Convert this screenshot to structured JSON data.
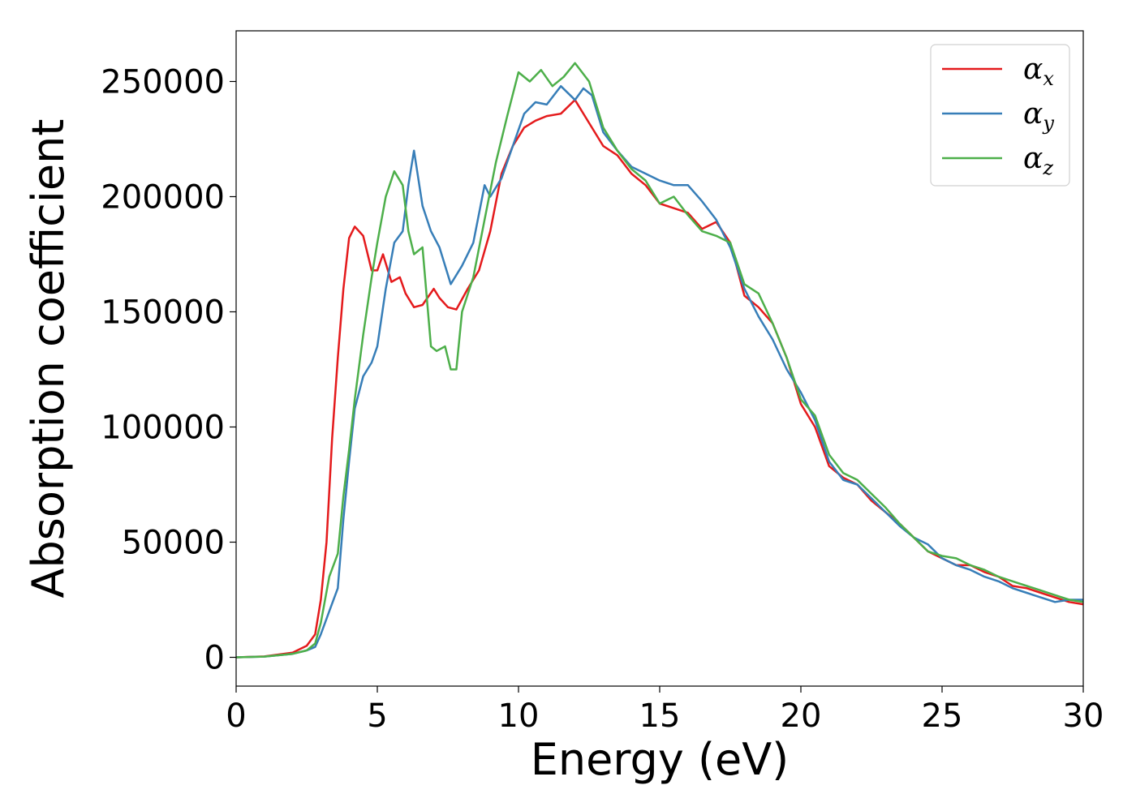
{
  "chart_data": {
    "type": "line",
    "title": "",
    "xlabel": "Energy (eV)",
    "ylabel": "Absorption coefficient",
    "xlim": [
      0,
      30
    ],
    "ylim": [
      -12500,
      272000
    ],
    "x_ticks": [
      0,
      5,
      10,
      15,
      20,
      25,
      30
    ],
    "x_tick_labels": [
      "0",
      "5",
      "10",
      "15",
      "20",
      "25",
      "30"
    ],
    "y_ticks": [
      0,
      50000,
      100000,
      150000,
      200000,
      250000
    ],
    "y_tick_labels": [
      "0",
      "50000",
      "100000",
      "150000",
      "200000",
      "250000"
    ],
    "grid": false,
    "legend_position": "top-right",
    "series": [
      {
        "name": "α",
        "name_subscript": "x",
        "color": "#e41a1c",
        "x": [
          0,
          1,
          2,
          2.5,
          2.8,
          3.0,
          3.2,
          3.4,
          3.6,
          3.8,
          4.0,
          4.2,
          4.5,
          4.8,
          5.0,
          5.2,
          5.5,
          5.8,
          6.0,
          6.3,
          6.6,
          7.0,
          7.2,
          7.5,
          7.8,
          8.2,
          8.6,
          9.0,
          9.4,
          9.8,
          10.2,
          10.6,
          11.0,
          11.5,
          12.0,
          12.5,
          13.0,
          13.5,
          14.0,
          14.5,
          15.0,
          15.5,
          16.0,
          16.5,
          17.0,
          17.5,
          18.0,
          18.5,
          19.0,
          19.5,
          20.0,
          20.5,
          21.0,
          21.5,
          22.0,
          22.5,
          23.0,
          23.5,
          24.0,
          24.5,
          25.0,
          25.5,
          26.0,
          26.5,
          27.0,
          27.5,
          28.0,
          28.5,
          29.0,
          29.5,
          30.0
        ],
        "y": [
          0,
          400,
          2000,
          5000,
          10000,
          25000,
          50000,
          95000,
          130000,
          160000,
          182000,
          187000,
          183000,
          168000,
          168000,
          175000,
          163000,
          165000,
          158000,
          152000,
          153000,
          160000,
          156000,
          152000,
          151000,
          160000,
          168000,
          185000,
          210000,
          222000,
          230000,
          233000,
          235000,
          236000,
          242000,
          232000,
          222000,
          218000,
          210000,
          205000,
          197000,
          195000,
          193000,
          186000,
          189000,
          180000,
          157000,
          152000,
          145000,
          130000,
          110000,
          100000,
          83000,
          78000,
          75000,
          68000,
          63000,
          58000,
          52000,
          46000,
          43000,
          40000,
          40000,
          37000,
          35000,
          31000,
          30000,
          28000,
          26000,
          24000,
          23000
        ]
      },
      {
        "name": "α",
        "name_subscript": "y",
        "color": "#377eb8",
        "x": [
          0,
          1,
          2,
          2.5,
          2.8,
          3.0,
          3.3,
          3.6,
          3.8,
          4.0,
          4.2,
          4.5,
          4.8,
          5.0,
          5.3,
          5.6,
          5.9,
          6.1,
          6.3,
          6.6,
          6.9,
          7.2,
          7.6,
          8.0,
          8.4,
          8.8,
          9.0,
          9.4,
          9.8,
          10.2,
          10.6,
          11.0,
          11.5,
          12.0,
          12.3,
          12.6,
          13.0,
          13.5,
          14.0,
          14.5,
          15.0,
          15.5,
          16.0,
          16.5,
          17.0,
          17.5,
          18.0,
          18.5,
          19.0,
          19.5,
          20.0,
          20.5,
          21.0,
          21.5,
          22.0,
          22.5,
          23.0,
          23.5,
          24.0,
          24.5,
          25.0,
          25.5,
          26.0,
          26.5,
          27.0,
          27.5,
          28.0,
          28.5,
          29.0,
          29.5,
          30.0
        ],
        "y": [
          0,
          300,
          1500,
          3000,
          4500,
          10000,
          20000,
          30000,
          60000,
          85000,
          108000,
          122000,
          128000,
          135000,
          160000,
          180000,
          185000,
          205000,
          220000,
          196000,
          185000,
          178000,
          162000,
          170000,
          180000,
          205000,
          200000,
          208000,
          222000,
          236000,
          241000,
          240000,
          248000,
          242000,
          247000,
          244000,
          228000,
          220000,
          213000,
          210000,
          207000,
          205000,
          205000,
          198000,
          190000,
          178000,
          160000,
          148000,
          138000,
          125000,
          115000,
          103000,
          85000,
          77000,
          75000,
          69000,
          63000,
          57000,
          52000,
          49000,
          43000,
          40000,
          38000,
          35000,
          33000,
          30000,
          28000,
          26000,
          24000,
          25000,
          25000
        ]
      },
      {
        "name": "α",
        "name_subscript": "z",
        "color": "#4daf4a",
        "x": [
          0,
          1,
          2,
          2.5,
          2.8,
          3.0,
          3.3,
          3.6,
          3.8,
          4.0,
          4.2,
          4.5,
          4.8,
          5.0,
          5.3,
          5.6,
          5.9,
          6.1,
          6.3,
          6.6,
          6.9,
          7.1,
          7.4,
          7.6,
          7.8,
          8.0,
          8.4,
          8.8,
          9.2,
          9.6,
          10.0,
          10.4,
          10.8,
          11.2,
          11.6,
          12.0,
          12.5,
          13.0,
          13.5,
          14.0,
          14.5,
          15.0,
          15.5,
          16.0,
          16.5,
          17.0,
          17.5,
          18.0,
          18.5,
          19.0,
          19.5,
          20.0,
          20.5,
          21.0,
          21.5,
          22.0,
          22.5,
          23.0,
          23.5,
          24.0,
          24.5,
          25.0,
          25.5,
          26.0,
          26.5,
          27.0,
          27.5,
          28.0,
          28.5,
          29.0,
          29.5,
          30.0
        ],
        "y": [
          0,
          300,
          1500,
          3000,
          6000,
          15000,
          35000,
          45000,
          70000,
          90000,
          112000,
          140000,
          165000,
          180000,
          200000,
          211000,
          205000,
          185000,
          175000,
          178000,
          135000,
          133000,
          135000,
          125000,
          125000,
          150000,
          165000,
          190000,
          215000,
          235000,
          254000,
          250000,
          255000,
          248000,
          252000,
          258000,
          250000,
          230000,
          220000,
          212000,
          207000,
          197000,
          200000,
          192000,
          185000,
          183000,
          180000,
          162000,
          158000,
          145000,
          130000,
          112000,
          105000,
          88000,
          80000,
          77000,
          71000,
          65000,
          58000,
          52000,
          46000,
          44000,
          43000,
          40000,
          38000,
          35000,
          33000,
          31000,
          29000,
          27000,
          25000,
          24000
        ]
      }
    ]
  }
}
